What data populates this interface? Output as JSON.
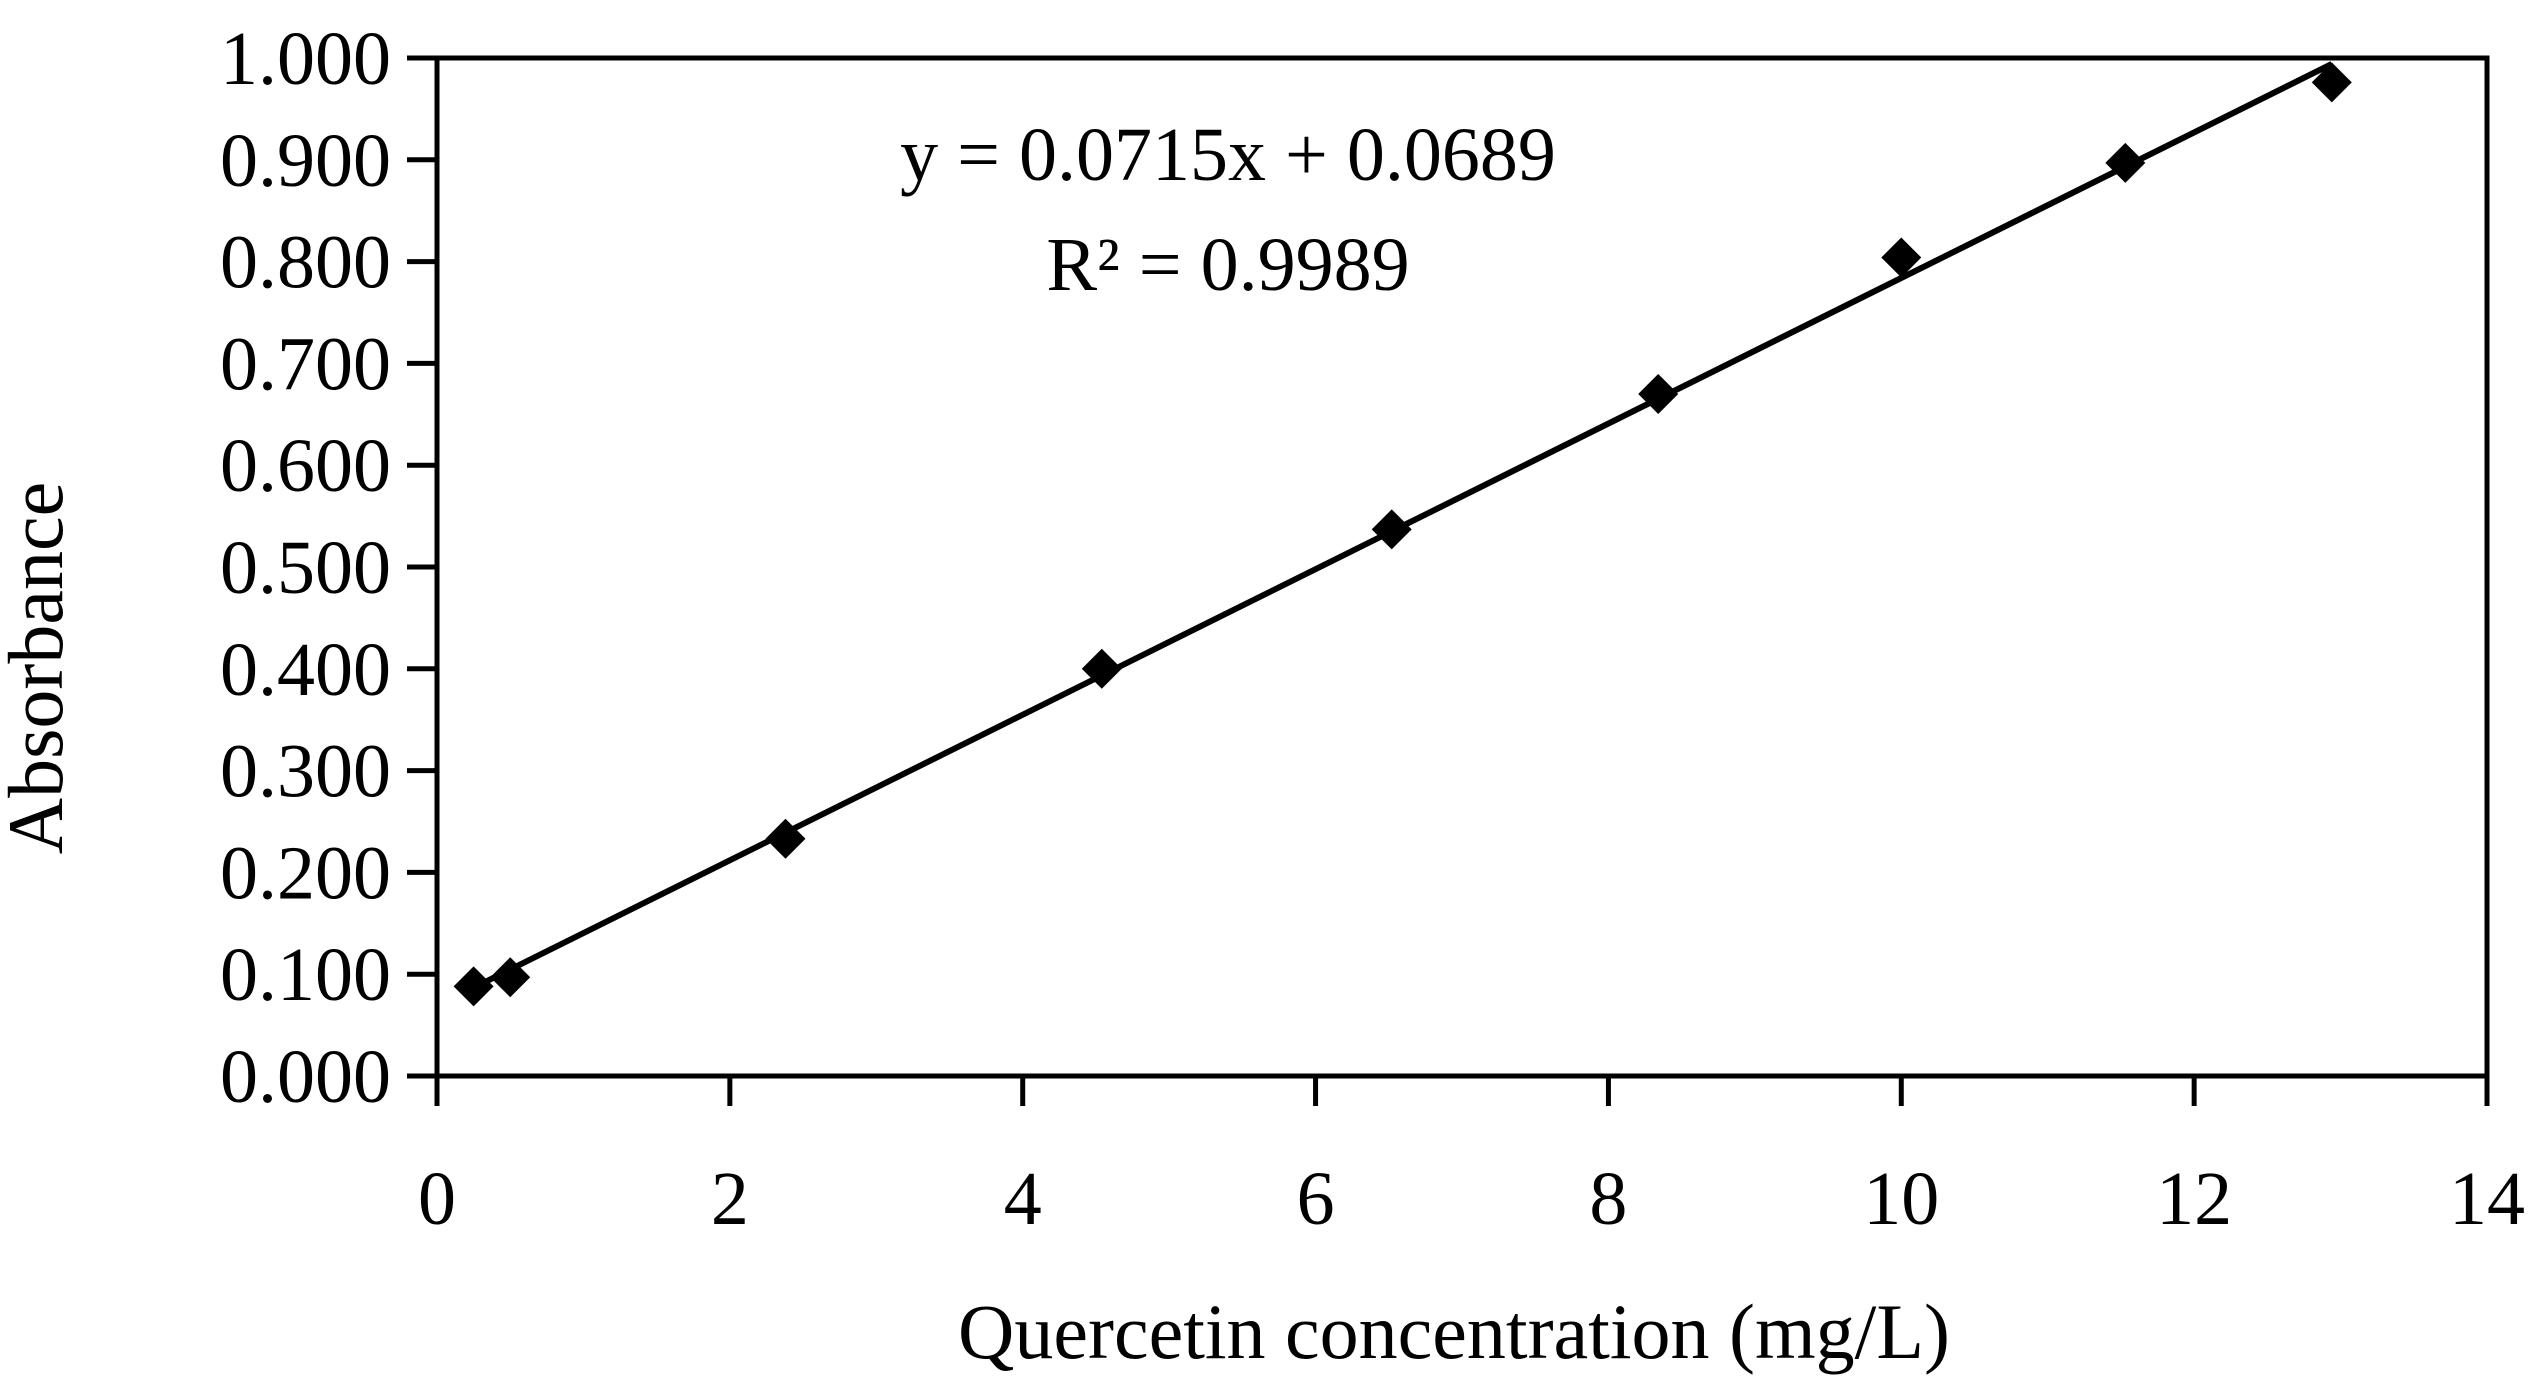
{
  "chart_data": {
    "type": "scatter",
    "title": "",
    "xlabel": "Quercetin concentration (mg/L)",
    "ylabel": "Absorbance",
    "xlim": [
      0,
      14
    ],
    "ylim": [
      0,
      1.0
    ],
    "x_ticks": [
      "0",
      "2",
      "4",
      "6",
      "8",
      "10",
      "12",
      "14"
    ],
    "y_ticks": [
      "0.000",
      "0.100",
      "0.200",
      "0.300",
      "0.400",
      "0.500",
      "0.600",
      "0.700",
      "0.800",
      "0.900",
      "1.000"
    ],
    "grid": false,
    "legend": "none",
    "marker": "diamond",
    "marker_color": "#000000",
    "series": [
      {
        "x": [
          0.25,
          0.5,
          2.38,
          4.54,
          6.52,
          8.34,
          10.0,
          11.53,
          12.94
        ],
        "y": [
          0.088,
          0.097,
          0.233,
          0.4,
          0.537,
          0.67,
          0.804,
          0.897,
          0.976
        ]
      }
    ],
    "trendline": {
      "type": "linear",
      "slope": 0.0715,
      "intercept": 0.0689,
      "x_range": [
        0.25,
        12.94
      ],
      "color": "#000000"
    },
    "annotations": {
      "equation": "y = 0.0715x + 0.0689",
      "r_squared": "R² = 0.9989"
    }
  }
}
